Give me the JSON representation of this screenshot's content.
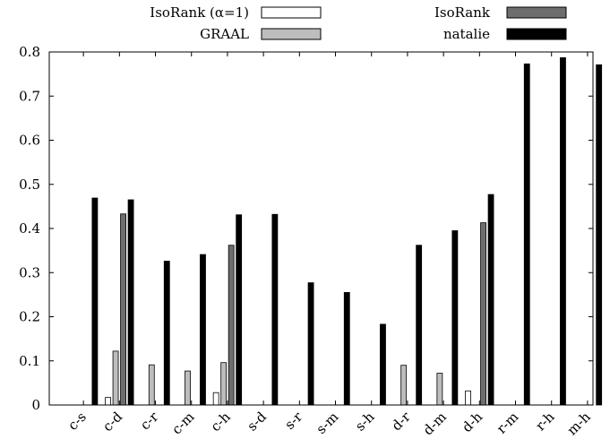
{
  "chart_data": {
    "type": "bar",
    "title": "",
    "xlabel": "",
    "ylabel": "",
    "ylim": [
      0,
      0.8
    ],
    "yticks": [
      "0",
      "0.1",
      "0.2",
      "0.3",
      "0.4",
      "0.5",
      "0.6",
      "0.7",
      "0.8"
    ],
    "grid": false,
    "legend_position": "top",
    "categories": [
      "c-s",
      "c-d",
      "c-r",
      "c-m",
      "c-h",
      "s-d",
      "s-r",
      "s-m",
      "s-h",
      "d-r",
      "d-m",
      "d-h",
      "r-m",
      "r-h",
      "m-h"
    ],
    "series": [
      {
        "name": "IsoRank (α=1)",
        "color": "#ffffff",
        "values": [
          0,
          0.017,
          0,
          0,
          0.028,
          0,
          0,
          0,
          0,
          0,
          0,
          0.032,
          0,
          0,
          0
        ]
      },
      {
        "name": "GRAAL",
        "color": "#bdbdbd",
        "values": [
          0,
          0.122,
          0.091,
          0.077,
          0.096,
          0,
          0,
          0,
          0,
          0.09,
          0.072,
          0,
          0,
          0,
          0
        ]
      },
      {
        "name": "IsoRank",
        "color": "#6e6e6e",
        "values": [
          0,
          0.433,
          0,
          0,
          0.362,
          0,
          0,
          0,
          0,
          0,
          0,
          0.413,
          0,
          0,
          0
        ]
      },
      {
        "name": "natalie",
        "color": "#000000",
        "values": [
          0.469,
          0.465,
          0.326,
          0.341,
          0.431,
          0.432,
          0.277,
          0.255,
          0.183,
          0.362,
          0.395,
          0.477,
          0.773,
          0.787,
          0.771
        ]
      }
    ]
  }
}
